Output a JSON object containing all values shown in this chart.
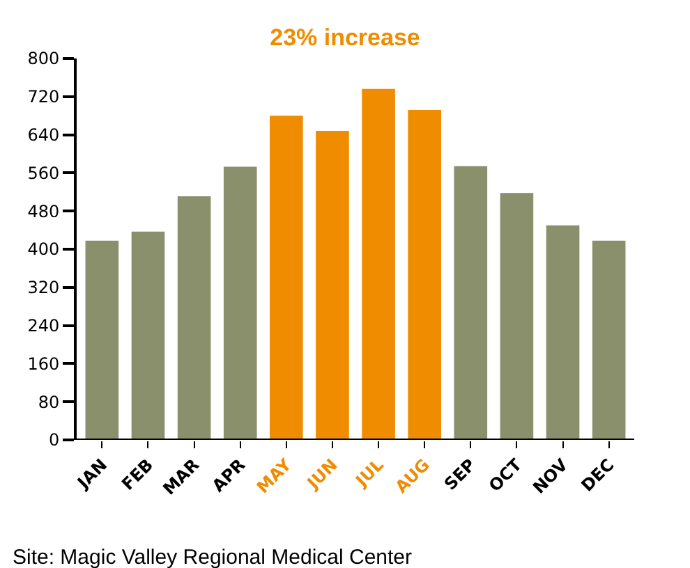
{
  "chart_data": {
    "type": "bar",
    "title": "23% increase",
    "categories": [
      "JAN",
      "FEB",
      "MAR",
      "APR",
      "MAY",
      "JUN",
      "JUL",
      "AUG",
      "SEP",
      "OCT",
      "NOV",
      "DEC"
    ],
    "values": [
      418,
      437,
      511,
      573,
      680,
      648,
      736,
      692,
      574,
      518,
      450,
      418
    ],
    "colors": [
      "#8a8f6c",
      "#8a8f6c",
      "#8a8f6c",
      "#8a8f6c",
      "#f08c00",
      "#f08c00",
      "#f08c00",
      "#f08c00",
      "#8a8f6c",
      "#8a8f6c",
      "#8a8f6c",
      "#8a8f6c"
    ],
    "ylim": [
      0,
      800
    ],
    "yticks": [
      0,
      80,
      160,
      240,
      320,
      400,
      480,
      560,
      640,
      720,
      800
    ],
    "annotations": [
      "Site: Magic Valley Regional Medical Center"
    ]
  }
}
